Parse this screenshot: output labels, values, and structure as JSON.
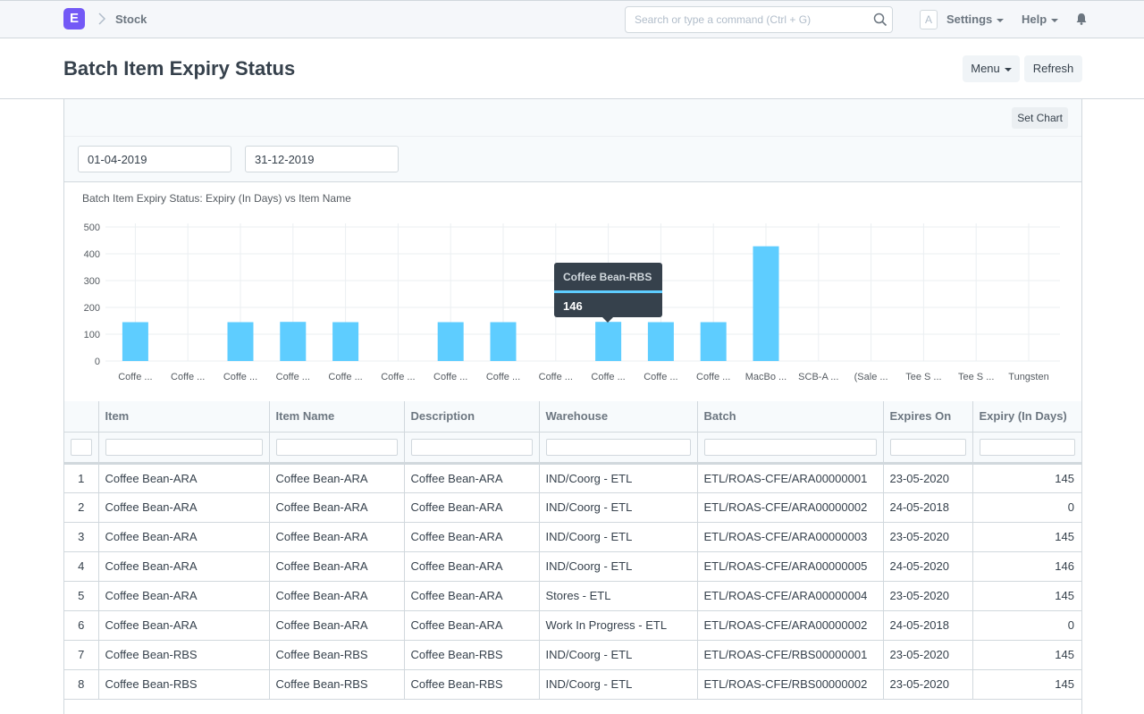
{
  "navbar": {
    "logo_letter": "E",
    "breadcrumb": "Stock",
    "search_placeholder": "Search or type a command (Ctrl + G)",
    "avatar_letter": "A",
    "settings_label": "Settings",
    "help_label": "Help"
  },
  "page": {
    "title": "Batch Item Expiry Status",
    "menu_label": "Menu",
    "refresh_label": "Refresh",
    "set_chart_label": "Set Chart"
  },
  "filters": {
    "from_date": "01-04-2019",
    "to_date": "31-12-2019"
  },
  "chart_data": {
    "type": "bar",
    "title": "Batch Item Expiry Status: Expiry (In Days) vs Item Name",
    "categories": [
      "Coffe ...",
      "Coffe ...",
      "Coffe ...",
      "Coffe ...",
      "Coffe ...",
      "Coffe ...",
      "Coffe ...",
      "Coffe ...",
      "Coffe ...",
      "Coffe ...",
      "Coffe ...",
      "Coffe ...",
      "MacBo ...",
      "SCB-A ...",
      "(Sale ...",
      "Tee S ...",
      "Tee S ...",
      "Tungsten"
    ],
    "values": [
      145,
      0,
      145,
      146,
      145,
      0,
      145,
      145,
      0,
      146,
      145,
      145,
      428,
      0,
      0,
      0,
      0,
      0
    ],
    "yticks": [
      0,
      100,
      200,
      300,
      400,
      500
    ],
    "ylim": [
      0,
      500
    ],
    "bar_color": "#5ecdff",
    "grid": true,
    "tooltip": {
      "label": "Coffee Bean-RBS",
      "value": "146",
      "index": 9
    }
  },
  "table": {
    "columns": [
      "Item",
      "Item Name",
      "Description",
      "Warehouse",
      "Batch",
      "Expires On",
      "Expiry (In Days)"
    ],
    "rows": [
      {
        "n": "1",
        "item": "Coffee Bean-ARA",
        "item_name": "Coffee Bean-ARA",
        "description": "Coffee Bean-ARA",
        "warehouse": "IND/Coorg - ETL",
        "batch": "ETL/ROAS-CFE/ARA00000001",
        "expires_on": "23-05-2020",
        "expiry_days": "145"
      },
      {
        "n": "2",
        "item": "Coffee Bean-ARA",
        "item_name": "Coffee Bean-ARA",
        "description": "Coffee Bean-ARA",
        "warehouse": "IND/Coorg - ETL",
        "batch": "ETL/ROAS-CFE/ARA00000002",
        "expires_on": "24-05-2018",
        "expiry_days": "0"
      },
      {
        "n": "3",
        "item": "Coffee Bean-ARA",
        "item_name": "Coffee Bean-ARA",
        "description": "Coffee Bean-ARA",
        "warehouse": "IND/Coorg - ETL",
        "batch": "ETL/ROAS-CFE/ARA00000003",
        "expires_on": "23-05-2020",
        "expiry_days": "145"
      },
      {
        "n": "4",
        "item": "Coffee Bean-ARA",
        "item_name": "Coffee Bean-ARA",
        "description": "Coffee Bean-ARA",
        "warehouse": "IND/Coorg - ETL",
        "batch": "ETL/ROAS-CFE/ARA00000005",
        "expires_on": "24-05-2020",
        "expiry_days": "146"
      },
      {
        "n": "5",
        "item": "Coffee Bean-ARA",
        "item_name": "Coffee Bean-ARA",
        "description": "Coffee Bean-ARA",
        "warehouse": "Stores - ETL",
        "batch": "ETL/ROAS-CFE/ARA00000004",
        "expires_on": "23-05-2020",
        "expiry_days": "145"
      },
      {
        "n": "6",
        "item": "Coffee Bean-ARA",
        "item_name": "Coffee Bean-ARA",
        "description": "Coffee Bean-ARA",
        "warehouse": "Work In Progress - ETL",
        "batch": "ETL/ROAS-CFE/ARA00000002",
        "expires_on": "24-05-2018",
        "expiry_days": "0"
      },
      {
        "n": "7",
        "item": "Coffee Bean-RBS",
        "item_name": "Coffee Bean-RBS",
        "description": "Coffee Bean-RBS",
        "warehouse": "IND/Coorg - ETL",
        "batch": "ETL/ROAS-CFE/RBS00000001",
        "expires_on": "23-05-2020",
        "expiry_days": "145"
      },
      {
        "n": "8",
        "item": "Coffee Bean-RBS",
        "item_name": "Coffee Bean-RBS",
        "description": "Coffee Bean-RBS",
        "warehouse": "IND/Coorg - ETL",
        "batch": "ETL/ROAS-CFE/RBS00000002",
        "expires_on": "23-05-2020",
        "expiry_days": "145"
      }
    ]
  }
}
